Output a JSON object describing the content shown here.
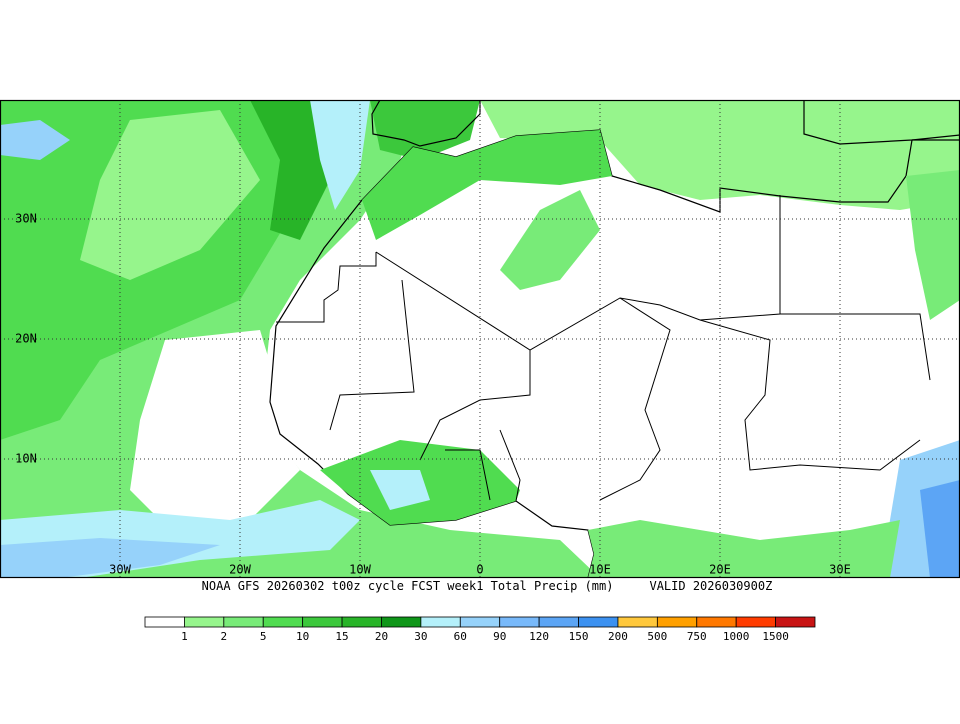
{
  "map": {
    "lon_labels": [
      "30W",
      "20W",
      "10W",
      "0",
      "10E",
      "20E",
      "30E"
    ],
    "lat_labels": [
      "30N",
      "20N",
      "10N"
    ],
    "caption": "NOAA GFS 20260302 t00z cycle FCST week1 Total Precip (mm)",
    "valid": "VALID 2026030900Z",
    "colorbar": {
      "colors": [
        "#ffffff",
        "#96f58c",
        "#78eb78",
        "#50dc50",
        "#3cc83c",
        "#28b428",
        "#0f9619",
        "#b4f0fa",
        "#96d2fa",
        "#78b9fa",
        "#5ca5f5",
        "#3c91f0",
        "#ffc83c",
        "#ffa000",
        "#ff7800",
        "#ff3c00",
        "#c81414"
      ],
      "labels": [
        1,
        2,
        5,
        10,
        15,
        20,
        30,
        60,
        90,
        120,
        150,
        200,
        500,
        750,
        1000,
        1500
      ]
    }
  }
}
